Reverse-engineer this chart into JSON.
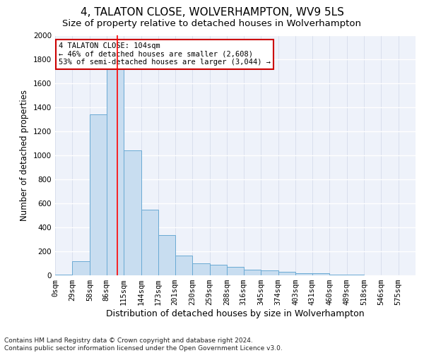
{
  "title": "4, TALATON CLOSE, WOLVERHAMPTON, WV9 5LS",
  "subtitle": "Size of property relative to detached houses in Wolverhampton",
  "xlabel": "Distribution of detached houses by size in Wolverhampton",
  "ylabel": "Number of detached properties",
  "footer_line1": "Contains HM Land Registry data © Crown copyright and database right 2024.",
  "footer_line2": "Contains public sector information licensed under the Open Government Licence v3.0.",
  "annotation_title": "4 TALATON CLOSE: 104sqm",
  "annotation_line1": "← 46% of detached houses are smaller (2,608)",
  "annotation_line2": "53% of semi-detached houses are larger (3,044) →",
  "bar_color": "#c8ddf0",
  "bar_edge_color": "#6aaad4",
  "red_line_x": 104,
  "annotation_box_edge_color": "#cc0000",
  "categories": [
    "0sqm",
    "29sqm",
    "58sqm",
    "86sqm",
    "115sqm",
    "144sqm",
    "173sqm",
    "201sqm",
    "230sqm",
    "259sqm",
    "288sqm",
    "316sqm",
    "345sqm",
    "374sqm",
    "403sqm",
    "431sqm",
    "460sqm",
    "489sqm",
    "518sqm",
    "546sqm",
    "575sqm"
  ],
  "bin_edges": [
    0,
    29,
    58,
    86,
    115,
    144,
    173,
    201,
    230,
    259,
    288,
    316,
    345,
    374,
    403,
    431,
    460,
    489,
    518,
    546,
    575,
    604
  ],
  "values": [
    5,
    120,
    1340,
    1900,
    1040,
    550,
    335,
    165,
    100,
    90,
    70,
    50,
    40,
    30,
    20,
    15,
    8,
    4,
    2,
    1,
    2
  ],
  "ylim": [
    0,
    2000
  ],
  "yticks": [
    0,
    200,
    400,
    600,
    800,
    1000,
    1200,
    1400,
    1600,
    1800,
    2000
  ],
  "background_color": "#ffffff",
  "plot_bg_color": "#eef2fa",
  "grid_color": "#ffffff",
  "title_fontsize": 11,
  "subtitle_fontsize": 9.5,
  "xlabel_fontsize": 9,
  "ylabel_fontsize": 8.5,
  "tick_fontsize": 7.5,
  "footer_fontsize": 6.5
}
